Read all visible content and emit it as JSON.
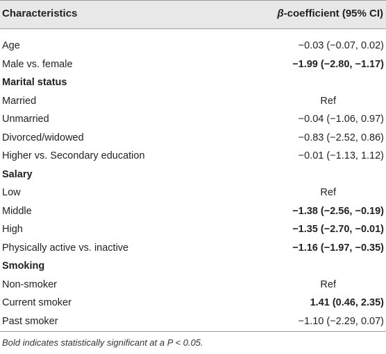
{
  "header": {
    "col1": "Characteristics",
    "col2_beta": "β",
    "col2_rest": "-coefficient (95% CI)"
  },
  "rows": [
    {
      "label": "Age",
      "value": "−0.03 (−0.07, 0.02)"
    },
    {
      "label": "Male vs. female",
      "value": "−1.99 (−2.80, −1.17)"
    },
    {
      "label": "Marital status",
      "value": ""
    },
    {
      "label": "Married",
      "value": "Ref"
    },
    {
      "label": "Unmarried",
      "value": "−0.04 (−1.06, 0.97)"
    },
    {
      "label": "Divorced/widowed",
      "value": "−0.83 (−2.52, 0.86)"
    },
    {
      "label": "Higher vs. Secondary education",
      "value": "−0.01 (−1.13, 1.12)"
    },
    {
      "label": "Salary",
      "value": ""
    },
    {
      "label": "Low",
      "value": "Ref"
    },
    {
      "label": "Middle",
      "value": "−1.38 (−2.56, −0.19)"
    },
    {
      "label": "High",
      "value": "−1.35 (−2.70, −0.01)"
    },
    {
      "label": "Physically active vs. inactive",
      "value": "−1.16 (−1.97, −0.35)"
    },
    {
      "label": "Smoking",
      "value": ""
    },
    {
      "label": "Non-smoker",
      "value": "Ref"
    },
    {
      "label": "Current smoker",
      "value": "1.41 (0.46, 2.35)"
    },
    {
      "label": "Past smoker",
      "value": "−1.10 (−2.29, 0.07)"
    }
  ],
  "footnote": "Bold indicates statistically significant at a P < 0.05."
}
